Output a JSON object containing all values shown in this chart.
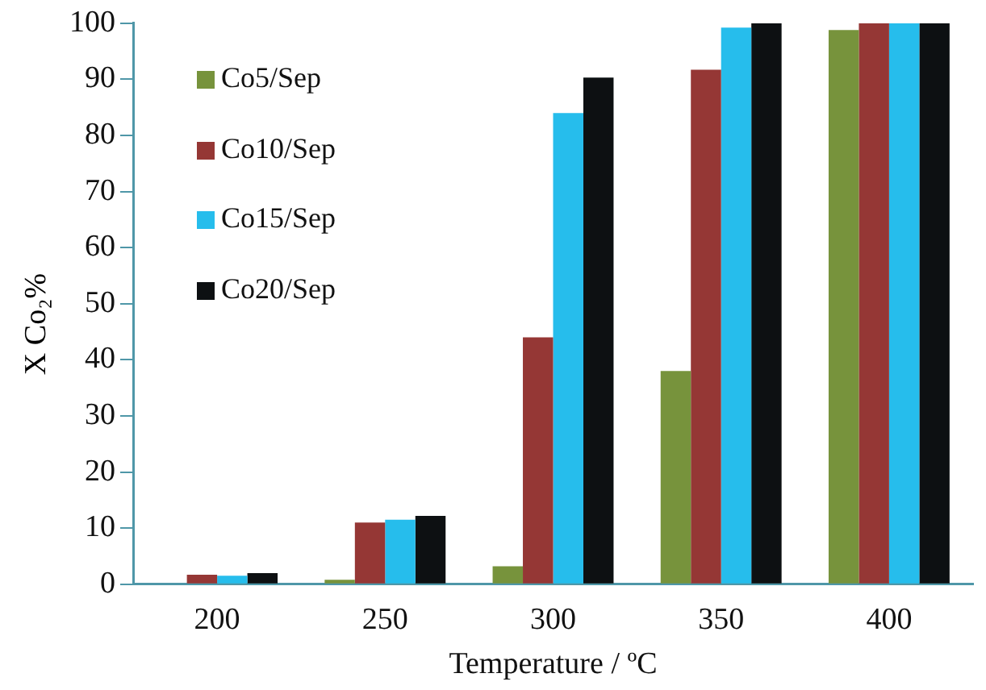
{
  "chart_data": {
    "type": "bar",
    "xlabel": "Temperature / ºC",
    "ylabel": "X Co₂%",
    "categories": [
      "200",
      "250",
      "300",
      "350",
      "400"
    ],
    "series": [
      {
        "name": "Co5/Sep",
        "color": "#77933c",
        "values": [
          0,
          0.8,
          3.2,
          38,
          98.8
        ]
      },
      {
        "name": "Co10/Sep",
        "color": "#953735",
        "values": [
          1.7,
          11,
          44,
          91.7,
          100
        ]
      },
      {
        "name": "Co15/Sep",
        "color": "#26bdec",
        "values": [
          1.5,
          11.5,
          84,
          99.2,
          100
        ]
      },
      {
        "name": "Co20/Sep",
        "color": "#0d1012",
        "values": [
          2,
          12.2,
          90.3,
          100,
          100
        ]
      }
    ],
    "ylim": [
      0,
      100
    ],
    "yticks": [
      0,
      10,
      20,
      30,
      40,
      50,
      60,
      70,
      80,
      90,
      100
    ],
    "grid": false,
    "legend": "top left"
  }
}
